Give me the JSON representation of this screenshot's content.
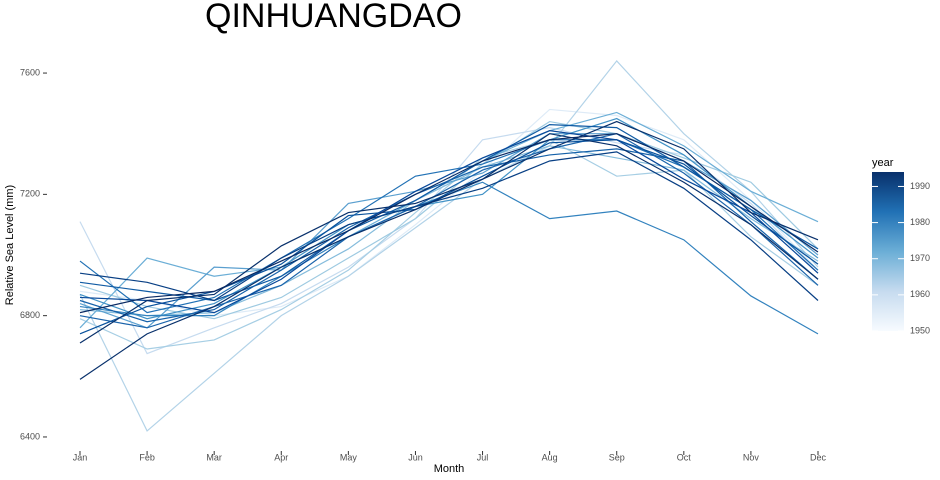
{
  "chart_data": {
    "type": "line",
    "title": "QINHUANGDAO",
    "x_label": "Month",
    "y_label": "Relative Sea Level (mm)",
    "categories": [
      "Jan",
      "Feb",
      "Mar",
      "Apr",
      "May",
      "Jun",
      "Jul",
      "Aug",
      "Sep",
      "Oct",
      "Nov",
      "Dec"
    ],
    "ylim": [
      6357,
      7709
    ],
    "yticks": [
      6400,
      6800,
      7200,
      7600
    ],
    "grid": false,
    "colorbar": {
      "title": "year",
      "lim": [
        1950,
        1994
      ],
      "ticks": [
        1950,
        1960,
        1970,
        1980,
        1990
      ],
      "colors": [
        "#f7fbff",
        "#c6dbef",
        "#6baed6",
        "#2171b5",
        "#08306b"
      ]
    },
    "series": [
      {
        "color": "#deebf7",
        "values": [
          6880,
          6850,
          6800,
          6830,
          6930,
          7100,
          7280,
          7480,
          7460,
          7380,
          7180,
          6950
        ]
      },
      {
        "color": "#c6dbef",
        "values": [
          7110,
          6675,
          6760,
          6840,
          6960,
          7120,
          7380,
          7420,
          7370,
          7330,
          7170,
          6940
        ]
      },
      {
        "color": "#b3d3e8",
        "values": [
          6870,
          6420,
          6610,
          6800,
          6930,
          7090,
          7250,
          7360,
          7640,
          7400,
          7210,
          6960
        ]
      },
      {
        "color": "#a6cee4",
        "values": [
          6790,
          6690,
          6720,
          6820,
          6950,
          7140,
          7320,
          7380,
          7260,
          7280,
          7060,
          6900
        ]
      },
      {
        "color": "#9ecae1",
        "values": [
          6900,
          6830,
          6790,
          6860,
          6990,
          7120,
          7300,
          7440,
          7400,
          7320,
          7240,
          7020
        ]
      },
      {
        "color": "#85bcdc",
        "values": [
          6820,
          6800,
          6810,
          6900,
          7020,
          7180,
          7290,
          7360,
          7320,
          7280,
          7120,
          6980
        ]
      },
      {
        "color": "#6baed6",
        "values": [
          6760,
          6990,
          6930,
          6960,
          7060,
          7180,
          7310,
          7410,
          7470,
          7360,
          7210,
          7110
        ]
      },
      {
        "color": "#5a9fcf",
        "values": [
          6840,
          6760,
          6960,
          6950,
          7170,
          7210,
          7270,
          7400,
          7400,
          7310,
          7180,
          7000
        ]
      },
      {
        "color": "#4292c6",
        "values": [
          6870,
          6790,
          6840,
          6960,
          7100,
          7160,
          7200,
          7380,
          7450,
          7330,
          7160,
          6990
        ]
      },
      {
        "color": "#3282be",
        "values": [
          6830,
          6800,
          6800,
          6930,
          7060,
          7160,
          7240,
          7120,
          7145,
          7050,
          6865,
          6740
        ]
      },
      {
        "color": "#2171b5",
        "values": [
          6980,
          6810,
          6860,
          6990,
          7120,
          7260,
          7300,
          7380,
          7380,
          7290,
          7150,
          6950
        ]
      },
      {
        "color": "#1b64ab",
        "values": [
          6800,
          6760,
          6830,
          6900,
          7060,
          7160,
          7280,
          7350,
          7400,
          7270,
          7100,
          6900
        ]
      },
      {
        "color": "#1561a9",
        "values": [
          6850,
          6780,
          6820,
          6950,
          7090,
          7200,
          7290,
          7330,
          7350,
          7310,
          7110,
          6920
        ]
      },
      {
        "color": "#105ba4",
        "values": [
          6910,
          6880,
          6850,
          6930,
          7080,
          7180,
          7310,
          7430,
          7420,
          7290,
          7150,
          7020
        ]
      },
      {
        "color": "#08519c",
        "values": [
          6740,
          6830,
          6880,
          6970,
          7130,
          7150,
          7260,
          7370,
          7380,
          7300,
          7130,
          6970
        ]
      },
      {
        "color": "#08489a",
        "values": [
          6860,
          6850,
          6810,
          6920,
          7080,
          7210,
          7320,
          7410,
          7380,
          7250,
          7140,
          6940
        ]
      },
      {
        "color": "#083f84",
        "values": [
          6940,
          6910,
          6850,
          6990,
          7100,
          7160,
          7220,
          7310,
          7340,
          7220,
          7050,
          6850
        ]
      },
      {
        "color": "#08306b",
        "values": [
          6590,
          6740,
          6830,
          6960,
          7060,
          7150,
          7250,
          7350,
          7440,
          7350,
          7140,
          7050
        ]
      },
      {
        "color": "#08306b",
        "values": [
          6710,
          6850,
          6870,
          7030,
          7140,
          7170,
          7250,
          7400,
          7360,
          7240,
          7100,
          6920
        ]
      },
      {
        "color": "#0a2a63",
        "values": [
          6810,
          6860,
          6880,
          6980,
          7080,
          7200,
          7310,
          7380,
          7400,
          7310,
          7160,
          7010
        ]
      }
    ]
  }
}
